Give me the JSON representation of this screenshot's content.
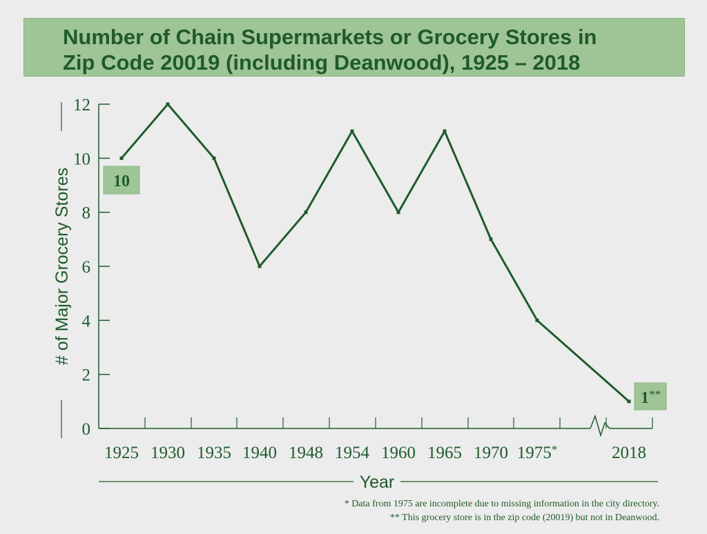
{
  "colors": {
    "background": "#ececec",
    "primary": "#1f5a2c",
    "title_box": "#9fc597",
    "label_box": "#9fc597"
  },
  "chart_data": {
    "type": "line",
    "title_line1": "Number of Chain Supermarkets or Grocery Stores in",
    "title_line2": "Zip Code 20019 (including Deanwood), 1925 – 2018",
    "xlabel": "Year",
    "ylabel": "# of Major Grocery Stores",
    "categories": [
      "1925",
      "1930",
      "1935",
      "1940",
      "1948",
      "1954",
      "1960",
      "1965",
      "1970",
      "1975",
      "2018"
    ],
    "x_tick_labels": [
      "1925",
      "1930",
      "1935",
      "1940",
      "1948",
      "1954",
      "1960",
      "1965",
      "1970",
      "1975*",
      "2018"
    ],
    "values": [
      10,
      12,
      10,
      6,
      8,
      11,
      8,
      11,
      7,
      4,
      1
    ],
    "ylim": [
      0,
      12
    ],
    "yticks": [
      "0",
      "2",
      "4",
      "6",
      "8",
      "10",
      "12"
    ],
    "axis_break": "between 1975 and 2018",
    "annotations": [
      {
        "text": "10",
        "category": "1925"
      },
      {
        "text": "1",
        "suffix": "**",
        "category": "2018"
      }
    ],
    "footnotes": [
      "* Data from 1975 are incomplete due to missing information in the city directory.",
      "** This grocery store is in the zip code (20019) but not in Deanwood."
    ]
  }
}
